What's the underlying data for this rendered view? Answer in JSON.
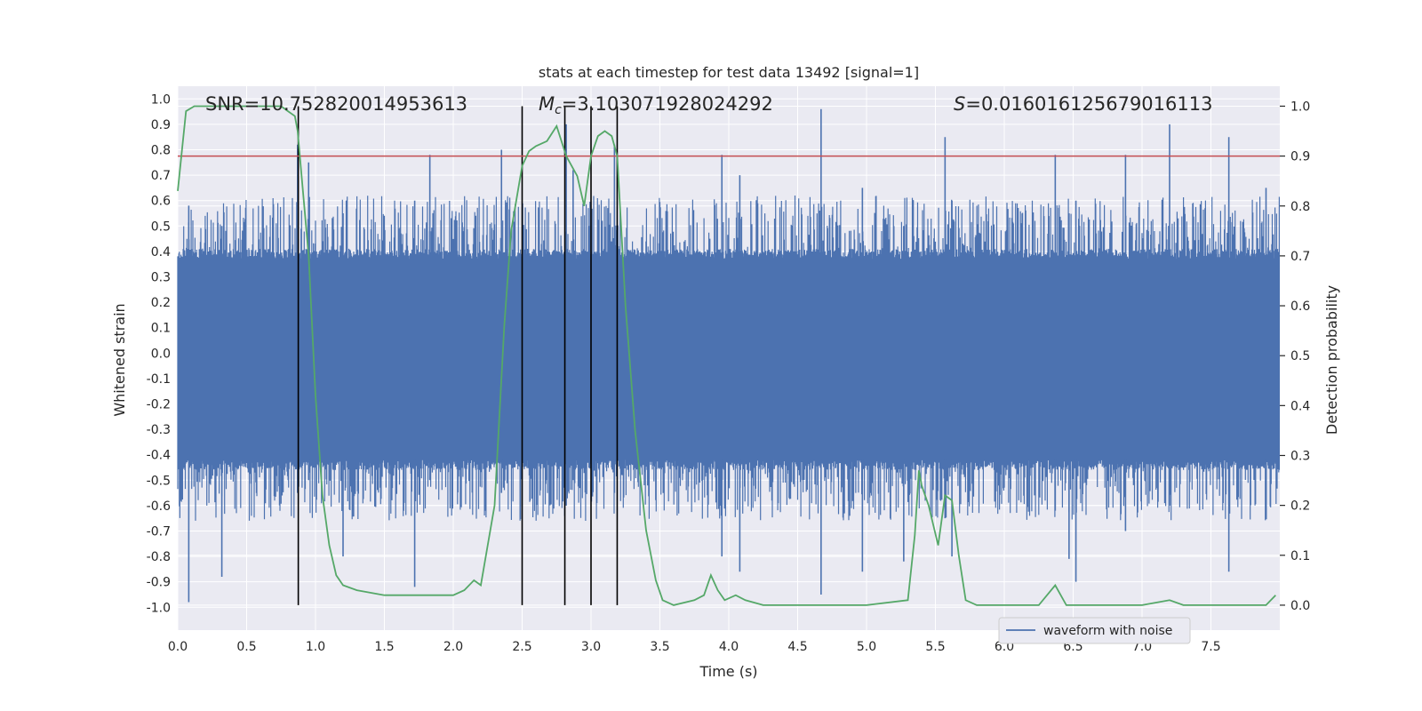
{
  "chart_data": {
    "type": "line",
    "title": "stats at each timestep for test data 13492 [signal=1]",
    "xlabel": "Time (s)",
    "ylabel": "Whitened strain",
    "y2label": "Detection probability",
    "xlim": [
      0.0,
      8.0
    ],
    "ylim": [
      -1.09,
      1.05
    ],
    "y2lim": [
      -0.05,
      1.04
    ],
    "xticks": [
      0.0,
      0.5,
      1.0,
      1.5,
      2.0,
      2.5,
      3.0,
      3.5,
      4.0,
      4.5,
      5.0,
      5.5,
      6.0,
      6.5,
      7.0,
      7.5
    ],
    "xtick_labels": [
      "0.0",
      "0.5",
      "1.0",
      "1.5",
      "2.0",
      "2.5",
      "3.0",
      "3.5",
      "4.0",
      "4.5",
      "5.0",
      "5.5",
      "6.0",
      "6.5",
      "7.0",
      "7.5"
    ],
    "yticks": [
      1.0,
      0.9,
      0.8,
      0.7,
      0.6,
      0.5,
      0.4,
      0.3,
      0.2,
      0.1,
      0.0,
      -0.1,
      -0.2,
      -0.3,
      -0.4,
      -0.5,
      -0.6,
      -0.7,
      -0.8,
      -0.9,
      -1.0
    ],
    "ytick_labels": [
      "1.0",
      "0.9",
      "0.8",
      "0.7",
      "0.6",
      "0.5",
      "0.4",
      "0.3",
      "0.2",
      "0.1",
      "0.0",
      "-0.1",
      "-0.2",
      "-0.3",
      "-0.4",
      "-0.5",
      "-0.6",
      "-0.7",
      "-0.8",
      "-0.9",
      "-1.0"
    ],
    "y2ticks": [
      1.0,
      0.9,
      0.8,
      0.7,
      0.6,
      0.5,
      0.4,
      0.3,
      0.2,
      0.1,
      0.0
    ],
    "y2tick_labels": [
      "1.0",
      "0.9",
      "0.8",
      "0.7",
      "0.6",
      "0.5",
      "0.4",
      "0.3",
      "0.2",
      "0.1",
      "0.0"
    ],
    "grid": true,
    "annotations": {
      "snr": "SNR=10.752820014953613",
      "mc_symbol": "M",
      "mc_sub": "c",
      "mc_value": "=3.103071928024292",
      "s_symbol": "S",
      "s_value": "=0.016016125679016113"
    },
    "legend": {
      "position": "lower-right",
      "entries": [
        "waveform with noise"
      ]
    },
    "threshold": {
      "name": "threshold",
      "y2_value": 0.9,
      "color": "#c44e52"
    },
    "event_markers_x": [
      0.875,
      2.5,
      2.81,
      3.0,
      3.19
    ],
    "event_markers_y2_range": [
      0.0,
      1.0
    ],
    "waveform": {
      "name": "waveform with noise",
      "color": "#4c72b0",
      "sample_rate_hz": 256,
      "core_band": [
        -0.42,
        0.37
      ],
      "spikes": [
        {
          "t": 0.08,
          "max": 0.58,
          "min": -0.98
        },
        {
          "t": 0.32,
          "max": 0.5,
          "min": -0.88
        },
        {
          "t": 0.87,
          "max": 0.82,
          "min": -0.55
        },
        {
          "t": 0.95,
          "max": 0.75,
          "min": -0.5
        },
        {
          "t": 1.2,
          "max": 0.55,
          "min": -0.8
        },
        {
          "t": 1.72,
          "max": 0.6,
          "min": -0.92
        },
        {
          "t": 1.83,
          "max": 0.78,
          "min": -0.5
        },
        {
          "t": 2.35,
          "max": 0.8,
          "min": -0.55
        },
        {
          "t": 2.82,
          "max": 0.9,
          "min": -0.6
        },
        {
          "t": 2.87,
          "max": 0.72,
          "min": -0.5
        },
        {
          "t": 3.17,
          "max": 0.82,
          "min": -0.55
        },
        {
          "t": 3.95,
          "max": 0.78,
          "min": -0.8
        },
        {
          "t": 4.08,
          "max": 0.7,
          "min": -0.86
        },
        {
          "t": 4.67,
          "max": 0.96,
          "min": -0.95
        },
        {
          "t": 4.97,
          "max": 0.65,
          "min": -0.86
        },
        {
          "t": 5.27,
          "max": 0.5,
          "min": -0.82
        },
        {
          "t": 5.57,
          "max": 0.85,
          "min": -0.65
        },
        {
          "t": 5.62,
          "max": 0.6,
          "min": -0.8
        },
        {
          "t": 6.37,
          "max": 0.78,
          "min": -0.62
        },
        {
          "t": 6.47,
          "max": 0.55,
          "min": -0.81
        },
        {
          "t": 6.52,
          "max": 0.6,
          "min": -0.9
        },
        {
          "t": 6.88,
          "max": 0.78,
          "min": -0.7
        },
        {
          "t": 7.2,
          "max": 0.9,
          "min": -0.6
        },
        {
          "t": 7.63,
          "max": 0.85,
          "min": -0.86
        },
        {
          "t": 7.9,
          "max": 0.65,
          "min": -0.55
        }
      ]
    },
    "detection_probability": {
      "name": "detection probability",
      "color": "#55a868",
      "t": [
        0.0,
        0.06,
        0.12,
        0.25,
        0.5,
        0.65,
        0.75,
        0.8,
        0.85,
        0.87,
        0.95,
        1.0,
        1.05,
        1.1,
        1.15,
        1.2,
        1.3,
        1.5,
        1.75,
        1.9,
        2.0,
        2.08,
        2.15,
        2.2,
        2.3,
        2.37,
        2.42,
        2.5,
        2.55,
        2.6,
        2.68,
        2.75,
        2.82,
        2.9,
        2.95,
        3.0,
        3.05,
        3.1,
        3.15,
        3.19,
        3.25,
        3.32,
        3.4,
        3.47,
        3.52,
        3.6,
        3.75,
        3.82,
        3.87,
        3.92,
        3.97,
        4.05,
        4.12,
        4.25,
        4.4,
        4.6,
        5.0,
        5.3,
        5.35,
        5.38,
        5.4,
        5.45,
        5.52,
        5.57,
        5.62,
        5.67,
        5.72,
        5.8,
        6.0,
        6.25,
        6.37,
        6.45,
        6.6,
        7.0,
        7.2,
        7.3,
        7.6,
        7.9,
        7.97
      ],
      "p": [
        0.83,
        0.99,
        1.0,
        1.0,
        1.0,
        1.0,
        1.0,
        0.99,
        0.98,
        0.95,
        0.7,
        0.42,
        0.22,
        0.12,
        0.06,
        0.04,
        0.03,
        0.02,
        0.02,
        0.02,
        0.02,
        0.03,
        0.05,
        0.04,
        0.2,
        0.56,
        0.75,
        0.88,
        0.91,
        0.92,
        0.93,
        0.96,
        0.9,
        0.86,
        0.8,
        0.9,
        0.94,
        0.95,
        0.94,
        0.9,
        0.6,
        0.35,
        0.15,
        0.05,
        0.01,
        0.0,
        0.01,
        0.02,
        0.06,
        0.03,
        0.01,
        0.02,
        0.01,
        0.0,
        0.0,
        0.0,
        0.0,
        0.01,
        0.14,
        0.27,
        0.24,
        0.2,
        0.12,
        0.22,
        0.21,
        0.1,
        0.01,
        0.0,
        0.0,
        0.0,
        0.04,
        0.0,
        0.0,
        0.0,
        0.01,
        0.0,
        0.0,
        0.0,
        0.02
      ]
    }
  }
}
